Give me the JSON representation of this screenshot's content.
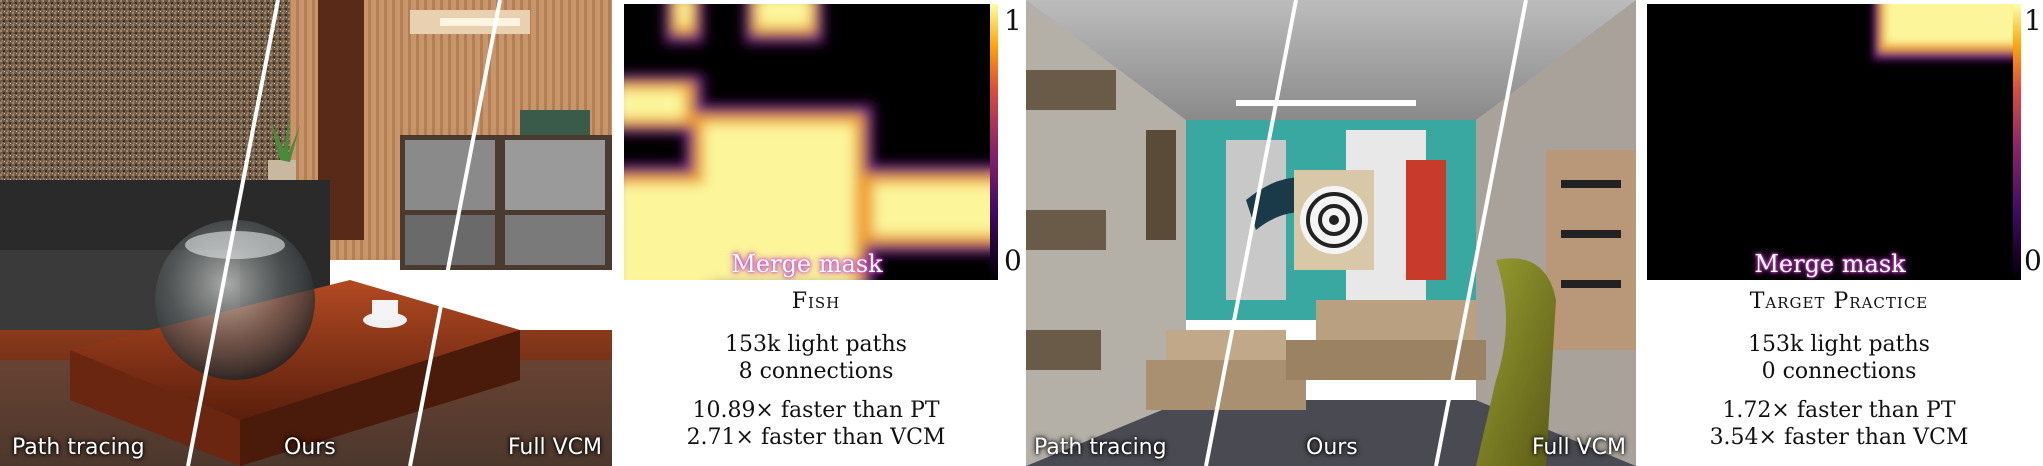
{
  "scenes": [
    {
      "title": "Fish",
      "render_labels": [
        "Path tracing",
        "Ours",
        "Full VCM"
      ],
      "mask_label": "Merge mask",
      "colorbar_max": "1",
      "colorbar_min": "0",
      "stats": [
        "153k light paths",
        "8 connections"
      ],
      "speedups": [
        "10.89× faster than PT",
        "2.71× faster than VCM"
      ]
    },
    {
      "title": "Target Practice",
      "render_labels": [
        "Path tracing",
        "Ours",
        "Full VCM"
      ],
      "mask_label": "Merge mask",
      "colorbar_max": "1",
      "colorbar_min": "0",
      "stats": [
        "153k light paths",
        "0 connections"
      ],
      "speedups": [
        "1.72× faster than PT",
        "3.54× faster than VCM"
      ]
    }
  ]
}
